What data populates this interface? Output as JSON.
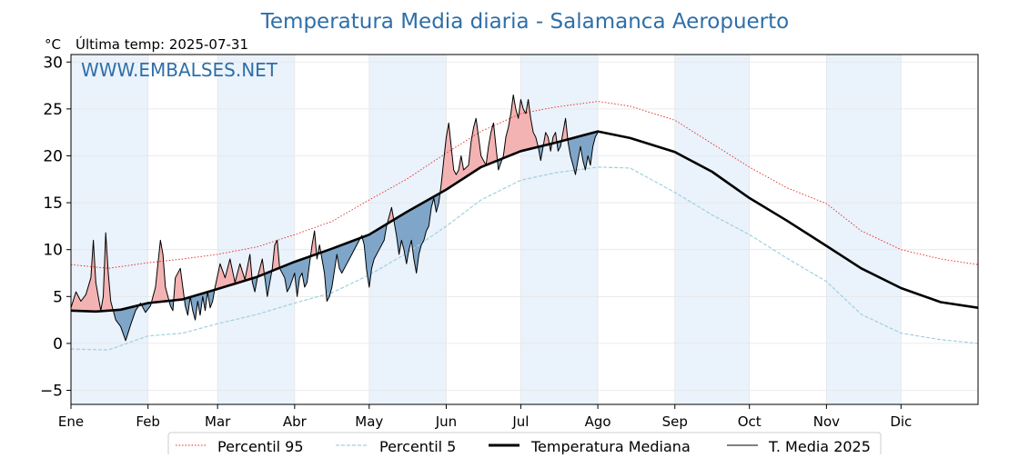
{
  "chart_data": {
    "type": "line",
    "title": "Temperatura Media diaria - Salamanca Aeropuerto",
    "unit_label": "°C",
    "last_temp_label": "Última temp: 2025-07-31",
    "watermark": "WWW.EMBALSES.NET",
    "xlabel": "",
    "ylabel": "",
    "ylim": [
      -6.5,
      30.8
    ],
    "xlim_days": [
      0,
      365
    ],
    "y_ticks": [
      -5,
      0,
      5,
      10,
      15,
      20,
      25,
      30
    ],
    "x_tick_labels": [
      "Ene",
      "Feb",
      "Mar",
      "Abr",
      "May",
      "Jun",
      "Jul",
      "Ago",
      "Sep",
      "Oct",
      "Nov",
      "Dic"
    ],
    "grid": true,
    "legend_position": "bottom",
    "colors": {
      "p95": "#e8251b",
      "p5": "#9fd0e0",
      "median": "#000000",
      "t2025": "#000000",
      "above_fill": "#f4b3b3",
      "below_fill": "#7fa6c9",
      "month_shade": "#eaf2fb",
      "title": "#2e6fa8"
    },
    "series": [
      {
        "name": "Percentil 95",
        "style": "dotted",
        "points": [
          [
            0,
            8.4
          ],
          [
            15,
            8.0
          ],
          [
            31,
            8.6
          ],
          [
            45,
            9.0
          ],
          [
            59,
            9.5
          ],
          [
            75,
            10.3
          ],
          [
            90,
            11.6
          ],
          [
            105,
            13.0
          ],
          [
            120,
            15.3
          ],
          [
            135,
            17.5
          ],
          [
            151,
            20.3
          ],
          [
            165,
            22.6
          ],
          [
            181,
            24.5
          ],
          [
            195,
            25.2
          ],
          [
            212,
            25.8
          ],
          [
            225,
            25.3
          ],
          [
            243,
            23.8
          ],
          [
            258,
            21.3
          ],
          [
            273,
            18.8
          ],
          [
            288,
            16.6
          ],
          [
            304,
            14.9
          ],
          [
            318,
            12.0
          ],
          [
            334,
            10.0
          ],
          [
            350,
            9.0
          ],
          [
            365,
            8.4
          ]
        ]
      },
      {
        "name": "Percentil 5",
        "style": "dashed",
        "points": [
          [
            0,
            -0.6
          ],
          [
            15,
            -0.7
          ],
          [
            31,
            0.8
          ],
          [
            45,
            1.1
          ],
          [
            59,
            2.1
          ],
          [
            75,
            3.1
          ],
          [
            90,
            4.3
          ],
          [
            105,
            5.4
          ],
          [
            120,
            7.3
          ],
          [
            135,
            9.6
          ],
          [
            151,
            12.5
          ],
          [
            165,
            15.3
          ],
          [
            181,
            17.4
          ],
          [
            195,
            18.2
          ],
          [
            212,
            18.8
          ],
          [
            225,
            18.7
          ],
          [
            243,
            16.1
          ],
          [
            258,
            13.7
          ],
          [
            273,
            11.6
          ],
          [
            288,
            9.1
          ],
          [
            304,
            6.6
          ],
          [
            318,
            3.1
          ],
          [
            334,
            1.1
          ],
          [
            350,
            0.4
          ],
          [
            365,
            0.0
          ]
        ]
      },
      {
        "name": "Temperatura Mediana",
        "style": "solid-thick",
        "points": [
          [
            0,
            3.5
          ],
          [
            10,
            3.4
          ],
          [
            20,
            3.6
          ],
          [
            31,
            4.3
          ],
          [
            45,
            4.7
          ],
          [
            59,
            5.8
          ],
          [
            75,
            7.1
          ],
          [
            90,
            8.7
          ],
          [
            105,
            10.1
          ],
          [
            120,
            11.6
          ],
          [
            135,
            14.0
          ],
          [
            151,
            16.4
          ],
          [
            165,
            18.8
          ],
          [
            181,
            20.5
          ],
          [
            195,
            21.4
          ],
          [
            212,
            22.6
          ],
          [
            225,
            21.9
          ],
          [
            243,
            20.4
          ],
          [
            258,
            18.3
          ],
          [
            273,
            15.5
          ],
          [
            288,
            13.1
          ],
          [
            304,
            10.4
          ],
          [
            318,
            8.0
          ],
          [
            334,
            5.9
          ],
          [
            350,
            4.4
          ],
          [
            365,
            3.8
          ]
        ]
      },
      {
        "name": "T. Media 2025",
        "style": "solid-thin",
        "points": [
          [
            0,
            3.8
          ],
          [
            2,
            5.5
          ],
          [
            4,
            4.5
          ],
          [
            6,
            5.2
          ],
          [
            8,
            7.0
          ],
          [
            9,
            11.0
          ],
          [
            10,
            6.5
          ],
          [
            11,
            5.0
          ],
          [
            12,
            3.5
          ],
          [
            13,
            5.0
          ],
          [
            14,
            11.8
          ],
          [
            15,
            7.5
          ],
          [
            16,
            4.5
          ],
          [
            18,
            2.5
          ],
          [
            20,
            1.8
          ],
          [
            22,
            0.3
          ],
          [
            24,
            2.0
          ],
          [
            26,
            3.5
          ],
          [
            28,
            4.3
          ],
          [
            30,
            3.3
          ],
          [
            32,
            4.0
          ],
          [
            34,
            6.0
          ],
          [
            36,
            11.0
          ],
          [
            37,
            9.5
          ],
          [
            38,
            6.0
          ],
          [
            40,
            4.0
          ],
          [
            41,
            3.5
          ],
          [
            42,
            7.0
          ],
          [
            44,
            8.0
          ],
          [
            46,
            4.0
          ],
          [
            47,
            3.0
          ],
          [
            48,
            5.0
          ],
          [
            49,
            3.5
          ],
          [
            50,
            2.5
          ],
          [
            51,
            4.5
          ],
          [
            52,
            3.0
          ],
          [
            53,
            5.0
          ],
          [
            54,
            3.5
          ],
          [
            55,
            5.5
          ],
          [
            56,
            3.8
          ],
          [
            57,
            4.5
          ],
          [
            58,
            6.0
          ],
          [
            60,
            8.5
          ],
          [
            62,
            7.0
          ],
          [
            64,
            9.0
          ],
          [
            66,
            6.5
          ],
          [
            68,
            8.5
          ],
          [
            70,
            6.8
          ],
          [
            72,
            9.5
          ],
          [
            73,
            6.5
          ],
          [
            74,
            5.5
          ],
          [
            75,
            7.0
          ],
          [
            77,
            9.0
          ],
          [
            78,
            7.0
          ],
          [
            79,
            5.0
          ],
          [
            81,
            8.0
          ],
          [
            82,
            10.5
          ],
          [
            83,
            11.0
          ],
          [
            84,
            8.0
          ],
          [
            86,
            7.0
          ],
          [
            87,
            5.5
          ],
          [
            88,
            6.0
          ],
          [
            90,
            7.5
          ],
          [
            91,
            5.0
          ],
          [
            92,
            7.0
          ],
          [
            93,
            7.5
          ],
          [
            94,
            6.0
          ],
          [
            95,
            6.5
          ],
          [
            96,
            8.5
          ],
          [
            97,
            10.5
          ],
          [
            98,
            12.0
          ],
          [
            99,
            9.0
          ],
          [
            100,
            10.5
          ],
          [
            101,
            9.0
          ],
          [
            102,
            7.5
          ],
          [
            103,
            4.5
          ],
          [
            104,
            5.0
          ],
          [
            105,
            6.0
          ],
          [
            107,
            9.5
          ],
          [
            108,
            8.0
          ],
          [
            109,
            7.5
          ],
          [
            111,
            8.5
          ],
          [
            113,
            9.5
          ],
          [
            115,
            10.5
          ],
          [
            117,
            11.5
          ],
          [
            118,
            10.5
          ],
          [
            119,
            7.8
          ],
          [
            120,
            6.0
          ],
          [
            121,
            8.0
          ],
          [
            122,
            9.0
          ],
          [
            124,
            10.0
          ],
          [
            126,
            11.0
          ],
          [
            127,
            12.5
          ],
          [
            128,
            13.5
          ],
          [
            129,
            14.5
          ],
          [
            130,
            13.0
          ],
          [
            131,
            11.5
          ],
          [
            132,
            9.5
          ],
          [
            133,
            11.0
          ],
          [
            134,
            10.0
          ],
          [
            135,
            8.5
          ],
          [
            136,
            10.0
          ],
          [
            137,
            11.0
          ],
          [
            138,
            9.0
          ],
          [
            139,
            7.5
          ],
          [
            140,
            9.5
          ],
          [
            141,
            10.5
          ],
          [
            142,
            11.0
          ],
          [
            143,
            12.0
          ],
          [
            144,
            12.5
          ],
          [
            145,
            14.5
          ],
          [
            146,
            15.5
          ],
          [
            147,
            14.0
          ],
          [
            148,
            15.0
          ],
          [
            149,
            17.0
          ],
          [
            150,
            19.5
          ],
          [
            151,
            22.0
          ],
          [
            152,
            23.5
          ],
          [
            153,
            21.0
          ],
          [
            154,
            18.5
          ],
          [
            155,
            18.0
          ],
          [
            156,
            18.5
          ],
          [
            157,
            20.0
          ],
          [
            158,
            18.5
          ],
          [
            160,
            19.0
          ],
          [
            161,
            21.5
          ],
          [
            162,
            23.0
          ],
          [
            163,
            24.0
          ],
          [
            164,
            22.0
          ],
          [
            165,
            20.0
          ],
          [
            166,
            19.5
          ],
          [
            167,
            19.0
          ],
          [
            168,
            21.0
          ],
          [
            169,
            22.5
          ],
          [
            170,
            23.5
          ],
          [
            171,
            21.0
          ],
          [
            172,
            18.5
          ],
          [
            174,
            20.0
          ],
          [
            175,
            22.0
          ],
          [
            176,
            23.0
          ],
          [
            177,
            24.5
          ],
          [
            178,
            26.5
          ],
          [
            179,
            25.0
          ],
          [
            180,
            24.0
          ],
          [
            181,
            26.0
          ],
          [
            182,
            25.0
          ],
          [
            183,
            24.5
          ],
          [
            184,
            26.0
          ],
          [
            185,
            24.0
          ],
          [
            186,
            22.5
          ],
          [
            187,
            22.0
          ],
          [
            188,
            21.0
          ],
          [
            189,
            19.5
          ],
          [
            190,
            21.0
          ],
          [
            191,
            22.5
          ],
          [
            192,
            22.0
          ],
          [
            193,
            20.5
          ],
          [
            194,
            22.0
          ],
          [
            195,
            22.5
          ],
          [
            196,
            20.5
          ],
          [
            197,
            21.0
          ],
          [
            198,
            22.5
          ],
          [
            199,
            24.0
          ],
          [
            200,
            21.5
          ],
          [
            201,
            20.0
          ],
          [
            202,
            19.0
          ],
          [
            203,
            18.0
          ],
          [
            204,
            19.5
          ],
          [
            205,
            21.0
          ],
          [
            206,
            19.5
          ],
          [
            207,
            18.5
          ],
          [
            208,
            20.0
          ],
          [
            209,
            19.0
          ],
          [
            210,
            21.0
          ],
          [
            211,
            22.0
          ],
          [
            212,
            22.5
          ]
        ]
      }
    ],
    "legend": [
      "Percentil 95",
      "Percentil 5",
      "Temperatura Mediana",
      "T. Media 2025"
    ]
  }
}
